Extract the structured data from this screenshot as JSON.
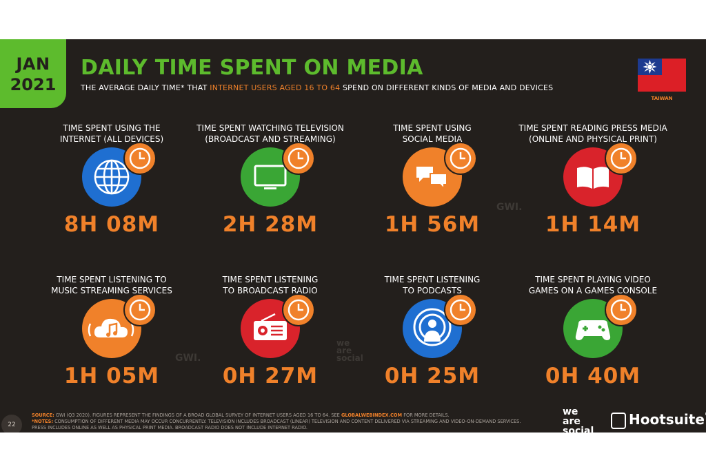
{
  "badge": {
    "month": "JAN",
    "year": "2021"
  },
  "header": {
    "title": "DAILY TIME SPENT ON MEDIA",
    "subtitle_pre": "THE AVERAGE DAILY TIME* THAT ",
    "subtitle_highlight": "INTERNET USERS AGED 16 TO 64",
    "subtitle_post": " SPEND ON DIFFERENT KINDS OF MEDIA AND DEVICES"
  },
  "country": {
    "label": "TAIWAN"
  },
  "metrics": [
    {
      "label": "TIME SPENT USING THE\nINTERNET (ALL DEVICES)",
      "value": "8H 08M",
      "icon": "globe-icon",
      "color": "#1f6fd1"
    },
    {
      "label": "TIME SPENT WATCHING TELEVISION\n(BROADCAST AND STREAMING)",
      "value": "2H 28M",
      "icon": "television-icon",
      "color": "#3aa635"
    },
    {
      "label": "TIME SPENT USING\nSOCIAL MEDIA",
      "value": "1H 56M",
      "icon": "chat-bubbles-icon",
      "color": "#f0812a"
    },
    {
      "label": "TIME SPENT READING PRESS MEDIA\n(ONLINE AND PHYSICAL PRINT)",
      "value": "1H 14M",
      "icon": "book-icon",
      "color": "#d9232b"
    },
    {
      "label": "TIME SPENT LISTENING TO\nMUSIC STREAMING SERVICES",
      "value": "1H 05M",
      "icon": "music-cloud-icon",
      "color": "#f0812a"
    },
    {
      "label": "TIME SPENT LISTENING\nTO BROADCAST RADIO",
      "value": "0H 27M",
      "icon": "radio-icon",
      "color": "#d9232b"
    },
    {
      "label": "TIME SPENT LISTENING\nTO PODCASTS",
      "value": "0H 25M",
      "icon": "podcast-icon",
      "color": "#1f6fd1"
    },
    {
      "label": "TIME SPENT PLAYING VIDEO\nGAMES ON A GAMES CONSOLE",
      "value": "0H 40M",
      "icon": "gamepad-icon",
      "color": "#3aa635"
    }
  ],
  "watermarks": {
    "gwi": "GWI.",
    "was_line1": "we",
    "was_line2": "are",
    "was_line3": "social"
  },
  "footer": {
    "source_key": "SOURCE:",
    "source_text": " GWI (Q3 2020). FIGURES REPRESENT THE FINDINGS OF A BROAD GLOBAL SURVEY OF INTERNET USERS AGED 16 TO 64. SEE ",
    "source_link": "GLOBALWEBINDEX.COM",
    "source_tail": " FOR MORE DETAILS.",
    "notes_key": "*NOTES:",
    "notes_text": " CONSUMPTION OF DIFFERENT MEDIA MAY OCCUR CONCURRENTLY. TELEVISION INCLUDES BROADCAST (LINEAR) TELEVISION AND CONTENT DELIVERED VIA STREAMING AND VIDEO-ON-DEMAND SERVICES. PRESS INCLUDES ONLINE AS WELL AS PHYSICAL PRINT MEDIA. BROADCAST RADIO DOES NOT INCLUDE INTERNET RADIO.",
    "page_number": "22"
  },
  "brands": {
    "was_1": "we",
    "was_2": "are",
    "was_3": "social",
    "hootsuite": "Hootsuite",
    "registered": "®"
  }
}
